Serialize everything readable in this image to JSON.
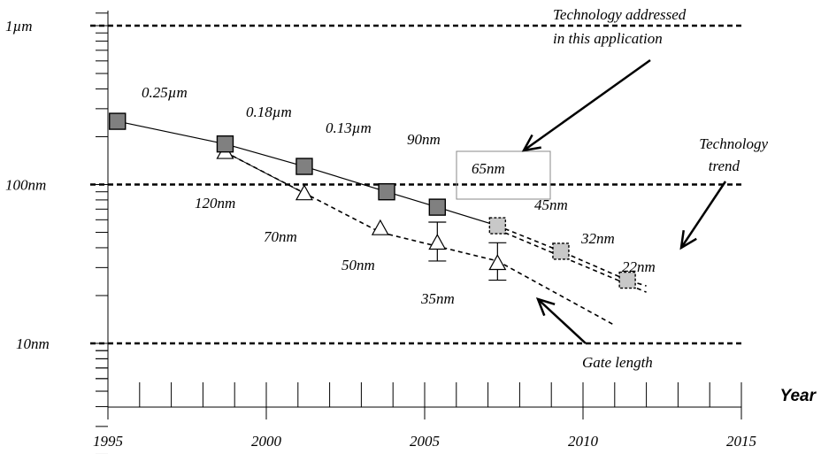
{
  "chart_data": {
    "type": "scatter",
    "title": "",
    "xlabel": "Year",
    "ylabel": "",
    "x_ticks": [
      1995,
      2000,
      2005,
      2010,
      2015
    ],
    "xlim": [
      1995,
      2015
    ],
    "y_scale": "log",
    "ylim_nm": [
      5,
      1600
    ],
    "y_ref_lines": [
      {
        "value_nm": 1000,
        "label": "1µm"
      },
      {
        "value_nm": 100,
        "label": "100nm"
      },
      {
        "value_nm": 10,
        "label": "10nm"
      }
    ],
    "series": [
      {
        "name": "Technology trend",
        "marker": "square",
        "points": [
          {
            "x": 1995.3,
            "y": 250,
            "label": "0.25µm",
            "projected": false
          },
          {
            "x": 1998.7,
            "y": 180,
            "label": "0.18µm",
            "projected": false
          },
          {
            "x": 2001.2,
            "y": 130,
            "label": "0.13µm",
            "projected": false
          },
          {
            "x": 2003.8,
            "y": 90,
            "label": "90nm",
            "projected": false
          },
          {
            "x": 2005.4,
            "y": 72,
            "label": "65nm",
            "projected": false
          },
          {
            "x": 2007.3,
            "y": 55,
            "label": "45nm",
            "projected": true
          },
          {
            "x": 2009.3,
            "y": 38,
            "label": "32nm",
            "projected": true
          },
          {
            "x": 2011.4,
            "y": 25,
            "label": "22nm",
            "projected": true
          }
        ],
        "trend_end": {
          "x": 2012.0,
          "y": 23
        }
      },
      {
        "name": "Gate length",
        "marker": "triangle",
        "points": [
          {
            "x": 1998.7,
            "y": 160,
            "label": "120nm"
          },
          {
            "x": 2001.2,
            "y": 88,
            "label": "70nm"
          },
          {
            "x": 2003.6,
            "y": 53,
            "label": "50nm"
          },
          {
            "x": 2005.4,
            "y": 43,
            "err_low": 33,
            "err_high": 58
          },
          {
            "x": 2007.3,
            "y": 32,
            "label": "35nm",
            "err_low": 25,
            "err_high": 43
          }
        ],
        "dashed_line": [
          {
            "x": 1998.7,
            "y": 160
          },
          {
            "x": 2003.6,
            "y": 50
          },
          {
            "x": 2007.3,
            "y": 33
          },
          {
            "x": 2011.0,
            "y": 13
          }
        ],
        "dashed_line_2": [
          {
            "x": 2007.3,
            "y": 52
          },
          {
            "x": 2012.0,
            "y": 21
          }
        ]
      }
    ],
    "annotations": {
      "technology_addressed": [
        "Technology addressed",
        "in this application"
      ],
      "technology_trend": [
        "Technology",
        "trend"
      ],
      "gate_length": "Gate length",
      "highlight_label": "65nm"
    }
  }
}
